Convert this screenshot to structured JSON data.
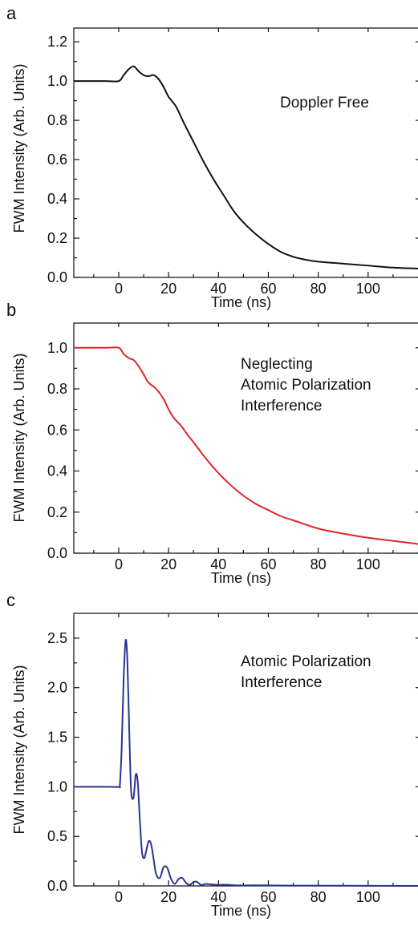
{
  "chart_data": [
    {
      "type": "line",
      "panel": "a",
      "xlabel": "Time (ns)",
      "ylabel": "FWM Intensity (Arb. Units)",
      "xlim": [
        -18,
        120
      ],
      "ylim": [
        0,
        1.27
      ],
      "xticks": [
        0,
        20,
        40,
        60,
        80,
        100
      ],
      "yticks": [
        0.0,
        0.2,
        0.4,
        0.6,
        0.8,
        1.0,
        1.2
      ],
      "ytick_labels": [
        "0.0",
        "0.2",
        "0.4",
        "0.6",
        "0.8",
        "1.0",
        "1.2"
      ],
      "annotation": [
        "Doppler Free"
      ],
      "color": "#111111",
      "series": [
        {
          "x": [
            -18,
            -10,
            -5,
            0,
            2,
            4,
            6,
            8,
            10,
            12,
            14,
            16,
            18,
            20,
            23,
            26,
            30,
            34,
            38,
            42,
            46,
            50,
            55,
            60,
            65,
            70,
            75,
            80,
            90,
            100,
            110,
            120
          ],
          "y": [
            1.0,
            1.0,
            1.0,
            1.0,
            1.03,
            1.06,
            1.075,
            1.05,
            1.03,
            1.025,
            1.03,
            1.01,
            0.97,
            0.92,
            0.87,
            0.79,
            0.69,
            0.59,
            0.5,
            0.42,
            0.34,
            0.28,
            0.22,
            0.17,
            0.13,
            0.105,
            0.09,
            0.08,
            0.07,
            0.06,
            0.05,
            0.045
          ]
        }
      ]
    },
    {
      "type": "line",
      "panel": "b",
      "xlabel": "Time (ns)",
      "ylabel": "FWM Intensity (Arb. Units)",
      "xlim": [
        -18,
        120
      ],
      "ylim": [
        0,
        1.12
      ],
      "xticks": [
        0,
        20,
        40,
        60,
        80,
        100
      ],
      "yticks": [
        0.0,
        0.2,
        0.4,
        0.6,
        0.8,
        1.0
      ],
      "ytick_labels": [
        "0.0",
        "0.2",
        "0.4",
        "0.6",
        "0.8",
        "1.0"
      ],
      "annotation": [
        "Neglecting",
        "Atomic Polarization",
        "Interference"
      ],
      "color": "#e0262a",
      "series": [
        {
          "x": [
            -18,
            -5,
            0,
            2,
            4,
            6,
            8,
            10,
            12,
            15,
            18,
            20,
            22,
            25,
            28,
            30,
            35,
            40,
            45,
            50,
            55,
            60,
            65,
            70,
            80,
            90,
            100,
            110,
            120
          ],
          "y": [
            1.0,
            1.0,
            1.0,
            0.97,
            0.95,
            0.94,
            0.91,
            0.87,
            0.83,
            0.8,
            0.75,
            0.7,
            0.66,
            0.62,
            0.57,
            0.54,
            0.46,
            0.39,
            0.33,
            0.28,
            0.24,
            0.21,
            0.18,
            0.16,
            0.12,
            0.095,
            0.075,
            0.06,
            0.045
          ]
        }
      ]
    },
    {
      "type": "line",
      "panel": "c",
      "xlabel": "Time (ns)",
      "ylabel": "FWM Intensity (Arb. Units)",
      "xlim": [
        -18,
        120
      ],
      "ylim": [
        0,
        2.75
      ],
      "xticks": [
        0,
        20,
        40,
        60,
        80,
        100
      ],
      "yticks": [
        0.0,
        0.5,
        1.0,
        1.5,
        2.0,
        2.5
      ],
      "ytick_labels": [
        "0.0",
        "0.5",
        "1.0",
        "1.5",
        "2.0",
        "2.5"
      ],
      "annotation": [
        "Atomic Polarization",
        "Interference"
      ],
      "color": "#2b3590",
      "series": [
        {
          "x": [
            -18,
            -5,
            0,
            0.5,
            1.2,
            2,
            2.8,
            3.5,
            4.3,
            5,
            6,
            6.8,
            7.6,
            8.4,
            9.3,
            10.2,
            11,
            12,
            13,
            14,
            15,
            16.5,
            18,
            19.5,
            21,
            22.5,
            24,
            25.5,
            27,
            28.5,
            30,
            31.5,
            33,
            35,
            37,
            40,
            43,
            48,
            55,
            70,
            90,
            120
          ],
          "y": [
            1.0,
            1.0,
            1.0,
            1.03,
            1.4,
            2.1,
            2.48,
            2.25,
            1.5,
            0.95,
            0.9,
            1.12,
            1.06,
            0.7,
            0.35,
            0.28,
            0.35,
            0.45,
            0.42,
            0.27,
            0.12,
            0.08,
            0.19,
            0.18,
            0.07,
            0.02,
            0.07,
            0.08,
            0.03,
            0.01,
            0.04,
            0.04,
            0.01,
            0.02,
            0.015,
            0.01,
            0.012,
            0.005,
            0.006,
            0.003,
            0.002,
            0.0
          ]
        }
      ]
    }
  ]
}
